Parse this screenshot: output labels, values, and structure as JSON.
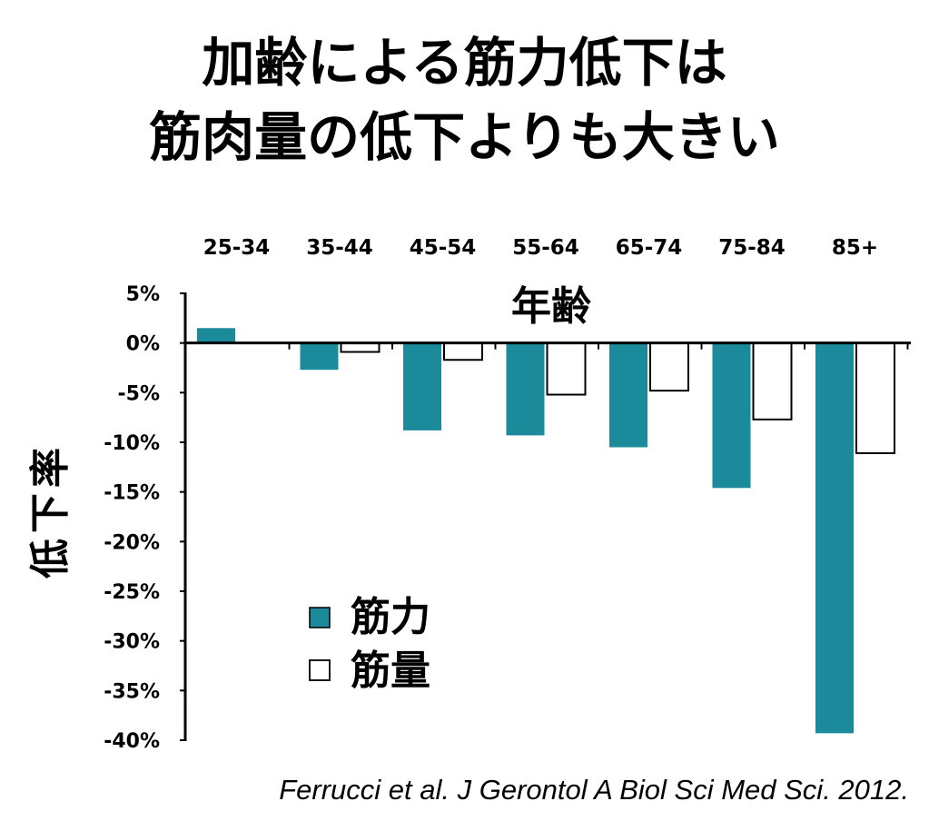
{
  "title": {
    "line1": "加齢による筋力低下は",
    "line2": "筋肉量の低下よりも大きい"
  },
  "citation": "Ferrucci et al. J Gerontol A Biol Sci Med Sci. 2012.",
  "colors": {
    "strength": "#1b8a9b",
    "mass": "#ffffff",
    "outline": "#000000"
  },
  "chart_data": {
    "type": "bar",
    "xlabel": "年齢",
    "ylabel": "低下率",
    "categories": [
      "25-34",
      "35-44",
      "45-54",
      "55-64",
      "65-74",
      "75-84",
      "85+"
    ],
    "series": [
      {
        "name": "筋力",
        "values": [
          1.5,
          -2.7,
          -8.8,
          -9.3,
          -10.5,
          -14.6,
          -39.3
        ]
      },
      {
        "name": "筋量",
        "values": [
          0,
          -0.9,
          -1.7,
          -5.2,
          -4.8,
          -7.7,
          -11.1
        ]
      }
    ],
    "ylim": [
      -40,
      5
    ],
    "yticks": [
      "5%",
      "0%",
      "-5%",
      "-10%",
      "-15%",
      "-20%",
      "-25%",
      "-30%",
      "-35%",
      "-40%"
    ],
    "ytick_values": [
      5,
      0,
      -5,
      -10,
      -15,
      -20,
      -25,
      -30,
      -35,
      -40
    ],
    "category_labels_position": "top",
    "legend_position": "bottom-left",
    "grid": false
  }
}
